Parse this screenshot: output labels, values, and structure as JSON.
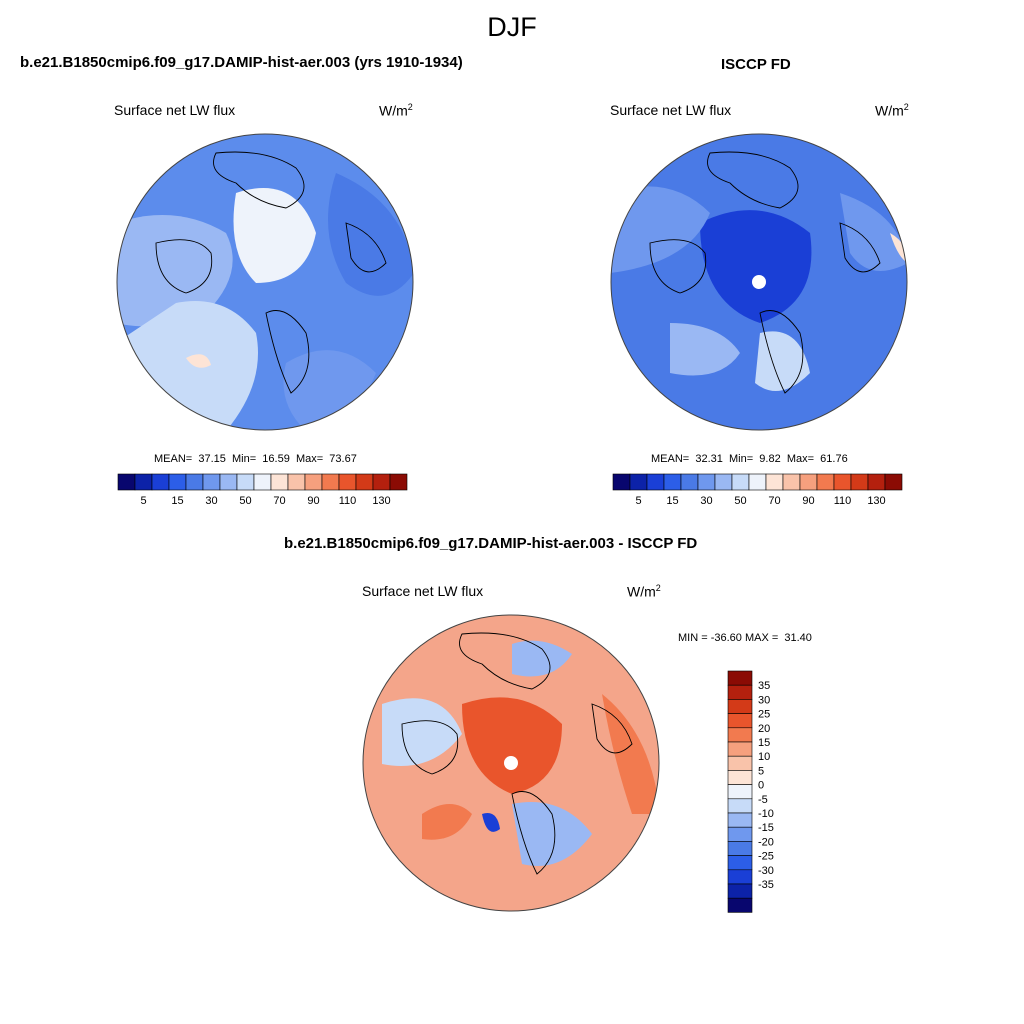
{
  "page": {
    "title": "DJF"
  },
  "panels": [
    {
      "id": "model",
      "title": "b.e21.B1850cmip6.f09_g17.DAMIP-hist-aer.003 (yrs 1910-1934)",
      "variable": "Surface net LW flux",
      "units_base": "W/m",
      "units_exp": "2",
      "stats": {
        "mean_label": "MEAN=",
        "mean": "37.15",
        "min_label": "Min=",
        "min": "16.59",
        "max_label": "Max=",
        "max": "73.67"
      },
      "map_fill": "#5c8cec",
      "pole_hole": false
    },
    {
      "id": "obs",
      "title": "ISCCP FD",
      "variable": "Surface net LW flux",
      "units_base": "W/m",
      "units_exp": "2",
      "stats": {
        "mean_label": "MEAN=",
        "mean": "32.31",
        "min_label": "Min=",
        "min": "9.82",
        "max_label": "Max=",
        "max": "61.76"
      },
      "map_fill": "#4a7ae6",
      "pole_hole": true
    },
    {
      "id": "diff",
      "title": "b.e21.B1850cmip6.f09_g17.DAMIP-hist-aer.003 - ISCCP FD",
      "variable": "Surface net LW flux",
      "units_base": "W/m",
      "units_exp": "2",
      "minmax_text": "MIN = -36.60 MAX =  31.40",
      "map_fill": "#f4a58a",
      "pole_hole": true
    }
  ],
  "colorbar_abs": {
    "colors": [
      "#08066e",
      "#0c22a8",
      "#1a3fd6",
      "#2c5ee8",
      "#4a7ae6",
      "#6f98ee",
      "#9ab8f3",
      "#c7dbf8",
      "#eef3fb",
      "#fde4d6",
      "#f9c3aa",
      "#f6a07e",
      "#f27a4f",
      "#e9552c",
      "#d33a18",
      "#b4200e",
      "#8b0b04"
    ],
    "labels": [
      "5",
      "15",
      "30",
      "50",
      "70",
      "90",
      "110",
      "130"
    ]
  },
  "colorbar_diff": {
    "colors": [
      "#8b0b04",
      "#b4200e",
      "#d33a18",
      "#e9552c",
      "#f27a4f",
      "#f6a07e",
      "#f9c3aa",
      "#fde4d6",
      "#eef3fb",
      "#c7dbf8",
      "#9ab8f3",
      "#6f98ee",
      "#4a7ae6",
      "#2c5ee8",
      "#1a3fd6",
      "#0c22a8",
      "#08066e"
    ],
    "labels": [
      "35",
      "30",
      "25",
      "20",
      "15",
      "10",
      "5",
      "0",
      "-5",
      "-10",
      "-15",
      "-20",
      "-25",
      "-30",
      "-35"
    ]
  }
}
